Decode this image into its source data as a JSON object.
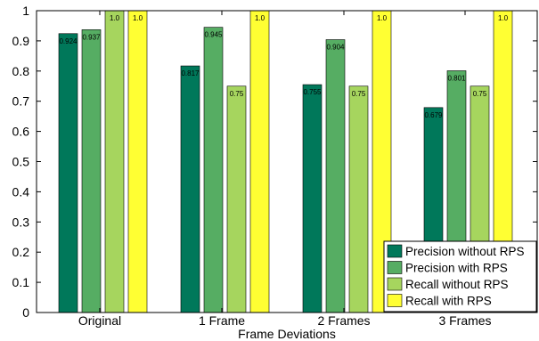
{
  "chart_data": {
    "type": "bar",
    "xlabel": "Frame Deviations",
    "ylabel": "",
    "title": "",
    "ylim": [
      0,
      1
    ],
    "yticks": [
      "0",
      "0.1",
      "0.2",
      "0.3",
      "0.4",
      "0.5",
      "0.6",
      "0.7",
      "0.8",
      "0.9",
      "1"
    ],
    "categories": [
      "Original",
      "1 Frame",
      "2 Frames",
      "3 Frames"
    ],
    "legend_position": "bottom-right",
    "series": [
      {
        "name": "Precision without RPS",
        "color": "#00785a",
        "values": [
          0.924,
          0.817,
          0.755,
          0.679
        ],
        "labels": [
          "0.924",
          "0.817",
          "0.755",
          "0.679"
        ]
      },
      {
        "name": "Precision with RPS",
        "color": "#56ad63",
        "values": [
          0.937,
          0.945,
          0.904,
          0.801
        ],
        "labels": [
          "0.937",
          "0.945",
          "0.904",
          "0.801"
        ]
      },
      {
        "name": "Recall without RPS",
        "color": "#a6d55e",
        "values": [
          1.0,
          0.75,
          0.75,
          0.75
        ],
        "labels": [
          "1.0",
          "0.75",
          "0.75",
          "0.75"
        ]
      },
      {
        "name": "Recall with RPS",
        "color": "#ffff33",
        "values": [
          1.0,
          1.0,
          1.0,
          1.0
        ],
        "labels": [
          "1.0",
          "1.0",
          "1.0",
          "1.0"
        ]
      }
    ]
  }
}
